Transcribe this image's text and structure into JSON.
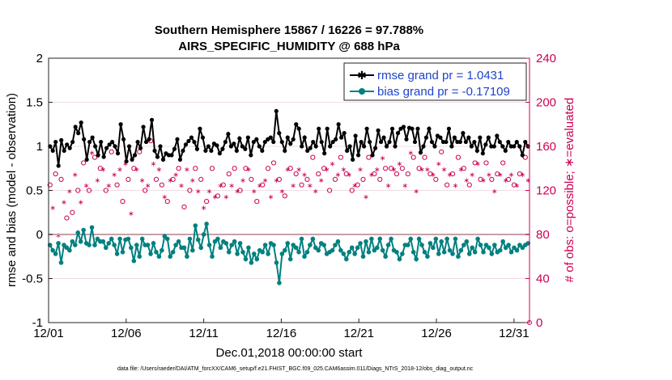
{
  "chart_data": {
    "type": "line",
    "title_line1": "Southern Hemisphere 15867 / 16226 = 97.788%",
    "title_line2": "AIRS_SPECIFIC_HUMIDITY @ 688 hPa",
    "xlabel": "Dec.01,2018 00:00:00 start",
    "ylabel": "rmse and bias (model - observation)",
    "ylabel_right": "# of obs: o=possible; ∗=evaluated",
    "x_tick_labels": [
      "12/01",
      "12/06",
      "12/11",
      "12/16",
      "12/21",
      "12/26",
      "12/31"
    ],
    "x_tick_days": [
      1,
      6,
      11,
      16,
      21,
      26,
      31
    ],
    "xlim": [
      1,
      32
    ],
    "ylim": [
      -1,
      2
    ],
    "y_ticks": [
      -1,
      -0.5,
      0,
      0.5,
      1,
      1.5,
      2
    ],
    "y_tick_labels": [
      "-1",
      "-0.5",
      "0",
      "0.5",
      "1",
      "1.5",
      "2"
    ],
    "ylim_right": [
      0,
      240
    ],
    "y_ticks_right": [
      0,
      40,
      80,
      120,
      160,
      200,
      240
    ],
    "y_tick_labels_right": [
      "0",
      "40",
      "80",
      "120",
      "160",
      "200",
      "240"
    ],
    "legend": {
      "position": "top-right",
      "rmse_label": "rmse grand pr = 1.0431",
      "bias_label": "bias grand pr = -0.17109"
    },
    "footer": "data file: /Users/raeder/DAI/ATM_forcXX/CAM6_setup/f.e21.FHIST_BGC.f09_025.CAM6assim.011/Diags_NTrS_2018-12/obs_diag_output.nc",
    "series": [
      {
        "name": "rmse",
        "color": "#000000",
        "values": [
          1.0,
          0.95,
          1.05,
          0.78,
          1.07,
          0.95,
          1.02,
          0.98,
          1.05,
          1.22,
          1.15,
          1.27,
          1.08,
          0.85,
          1.05,
          1.1,
          1.0,
          0.9,
          1.05,
          0.88,
          0.98,
          1.02,
          1.05,
          1.0,
          0.92,
          1.25,
          1.08,
          0.83,
          1.0,
          0.85,
          0.9,
          1.05,
          0.98,
          1.22,
          1.05,
          1.08,
          1.3,
          0.95,
          0.88,
          1.0,
          0.85,
          0.92,
          0.9,
          0.9,
          0.97,
          1.08,
          0.85,
          0.95,
          1.02,
          1.06,
          1.1,
          1.05,
          0.97,
          1.2,
          1.1,
          0.95,
          1.0,
          0.95,
          1.03,
          1.01,
          0.92,
          0.97,
          1.05,
          1.14,
          1.0,
          1.03,
          0.95,
          1.09,
          1.0,
          0.97,
          1.1,
          0.9,
          1.05,
          1.08,
          1.0,
          0.95,
          1.05,
          1.08,
          1.1,
          1.05,
          1.4,
          1.15,
          1.05,
          0.95,
          1.1,
          1.03,
          1.08,
          1.25,
          1.2,
          1.0,
          1.1,
          0.95,
          0.98,
          1.05,
          1.0,
          1.2,
          1.05,
          0.92,
          1.2,
          1.0,
          1.05,
          1.08,
          1.25,
          1.1,
          1.15,
          0.95,
          1.0,
          0.85,
          1.12,
          0.9,
          1.05,
          1.0,
          1.2,
          1.05,
          0.9,
          0.98,
          1.18,
          1.05,
          1.1,
          1.0,
          1.05,
          1.2,
          1.0,
          1.15,
          1.2,
          1.22,
          1.08,
          1.21,
          1.2,
          1.05,
          1.2,
          0.93,
          1.0,
          1.1,
          1.2,
          1.05,
          1.0,
          1.12,
          1.1,
          1.05,
          1.05,
          1.2,
          1.0,
          1.1,
          1.05,
          1.05,
          1.15,
          1.05,
          1.1,
          1.0,
          1.05,
          0.95,
          1.1,
          0.92,
          1.02,
          1.1,
          1.0,
          1.0,
          1.12,
          1.05,
          1.0,
          0.95,
          1.05,
          1.0,
          1.0,
          1.05,
          1.0,
          0.9,
          1.05,
          1.0
        ]
      },
      {
        "name": "bias",
        "color": "#00807f",
        "values": [
          -0.12,
          -0.18,
          -0.22,
          -0.1,
          -0.32,
          -0.12,
          -0.15,
          -0.18,
          -0.08,
          -0.12,
          0.02,
          -0.08,
          0.05,
          -0.1,
          -0.12,
          0.08,
          -0.12,
          -0.05,
          -0.08,
          -0.08,
          -0.15,
          -0.1,
          -0.05,
          -0.12,
          -0.22,
          -0.05,
          -0.2,
          -0.06,
          -0.05,
          -0.15,
          -0.3,
          -0.12,
          -0.25,
          -0.05,
          -0.12,
          -0.12,
          -0.22,
          -0.1,
          -0.2,
          -0.25,
          -0.18,
          -0.02,
          -0.05,
          -0.25,
          -0.2,
          -0.12,
          -0.08,
          -0.15,
          -0.15,
          -0.25,
          -0.05,
          -0.18,
          0.1,
          -0.06,
          -0.15,
          0.0,
          0.12,
          -0.12,
          -0.25,
          -0.08,
          -0.05,
          -0.15,
          -0.08,
          -0.1,
          -0.2,
          -0.12,
          -0.08,
          -0.22,
          -0.1,
          -0.2,
          -0.28,
          -0.15,
          -0.32,
          -0.22,
          -0.28,
          -0.18,
          -0.2,
          -0.12,
          -0.22,
          -0.1,
          -0.12,
          -0.32,
          -0.55,
          -0.22,
          -0.18,
          -0.1,
          -0.28,
          -0.12,
          -0.15,
          -0.2,
          -0.05,
          -0.25,
          -0.2,
          -0.12,
          -0.05,
          -0.15,
          -0.18,
          -0.1,
          -0.12,
          -0.22,
          -0.2,
          -0.18,
          -0.12,
          -0.08,
          -0.18,
          -0.22,
          -0.28,
          -0.2,
          -0.15,
          -0.22,
          -0.15,
          -0.1,
          -0.25,
          -0.08,
          -0.2,
          -0.05,
          -0.18,
          -0.15,
          -0.05,
          -0.18,
          -0.25,
          -0.12,
          -0.05,
          -0.18,
          -0.2,
          -0.28,
          -0.22,
          -0.12,
          -0.12,
          -0.05,
          -0.2,
          -0.28,
          -0.05,
          -0.12,
          -0.2,
          -0.25,
          -0.1,
          -0.15,
          -0.05,
          -0.22,
          -0.08,
          -0.2,
          -0.05,
          -0.18,
          -0.22,
          -0.05,
          -0.25,
          -0.18,
          -0.12,
          -0.08,
          -0.22,
          -0.15,
          -0.2,
          -0.05,
          -0.12,
          -0.2,
          -0.12,
          -0.15,
          -0.22,
          -0.12,
          -0.2,
          -0.18,
          -0.08,
          -0.15,
          -0.12,
          -0.2,
          -0.15,
          -0.18,
          -0.12,
          -0.15,
          -0.12,
          -0.1
        ]
      },
      {
        "name": "obs_possible",
        "color": "#cc0055",
        "marker": "o",
        "values": [
          125,
          110,
          135,
          85,
          130,
          115,
          95,
          125,
          100,
          140,
          120,
          115,
          145,
          130,
          120,
          160,
          150,
          135,
          140,
          145,
          120,
          130,
          155,
          140,
          125,
          145,
          110,
          150,
          130,
          105,
          140,
          145,
          155,
          135,
          120,
          130,
          165,
          150,
          130,
          145,
          125,
          120,
          110,
          135,
          130,
          140,
          140,
          130,
          105,
          145,
          120,
          135,
          140,
          125,
          130,
          110,
          110,
          125,
          140,
          120,
          115,
          130,
          125,
          120,
          135,
          130,
          140,
          125,
          120,
          135,
          140,
          145,
          130,
          125,
          110,
          130,
          125,
          135,
          140,
          120,
          145,
          135,
          130,
          125,
          115,
          145,
          140,
          130,
          135,
          145,
          125,
          140,
          130,
          130,
          150,
          125,
          135,
          135,
          140,
          145,
          120,
          150,
          130,
          140,
          150,
          145,
          135,
          140,
          120,
          130,
          125,
          145,
          130,
          120,
          150,
          140,
          135,
          145,
          130,
          155,
          140,
          130,
          140,
          145,
          135,
          150,
          140,
          130,
          135,
          160,
          150,
          125,
          140,
          145,
          150,
          145,
          135,
          140,
          130,
          150,
          155,
          145,
          125,
          140,
          135,
          130,
          150,
          145,
          140,
          135,
          125,
          140,
          145,
          150,
          130,
          135,
          145,
          140,
          130,
          125,
          135,
          140,
          145,
          135,
          130,
          140,
          125,
          130,
          135,
          140,
          150,
          135
        ]
      },
      {
        "name": "obs_evaluated",
        "color": "#cc0055",
        "marker": "*",
        "values": [
          120,
          105,
          130,
          80,
          125,
          110,
          90,
          120,
          95,
          135,
          115,
          110,
          140,
          125,
          115,
          155,
          145,
          130,
          135,
          140,
          115,
          125,
          150,
          135,
          120,
          140,
          105,
          145,
          125,
          100,
          135,
          140,
          150,
          130,
          115,
          125,
          160,
          145,
          125,
          140,
          120,
          115,
          105,
          130,
          125,
          135,
          135,
          125,
          100,
          140,
          115,
          130,
          135,
          120,
          125,
          105,
          105,
          120,
          135,
          115,
          110,
          125,
          120,
          115,
          130,
          125,
          135,
          120,
          115,
          130,
          135,
          140,
          125,
          120,
          105,
          125,
          120,
          130,
          135,
          115,
          140,
          130,
          125,
          120,
          110,
          140,
          135,
          125,
          130,
          140,
          120,
          135,
          125,
          125,
          145,
          120,
          130,
          130,
          135,
          140,
          115,
          145,
          125,
          135,
          145,
          140,
          130,
          135,
          115,
          125,
          120,
          140,
          125,
          115,
          145,
          135,
          130,
          140,
          125,
          150,
          135,
          125,
          135,
          140,
          130,
          145,
          135,
          125,
          130,
          155,
          145,
          120,
          135,
          140,
          145,
          140,
          130,
          135,
          125,
          145,
          150,
          140,
          120,
          135,
          130,
          125,
          145,
          140,
          135,
          130,
          120,
          135,
          140,
          145,
          125,
          130,
          140,
          135,
          125,
          120,
          130,
          135,
          140,
          130,
          125,
          135,
          120,
          125,
          130,
          135,
          145,
          130
        ]
      }
    ]
  }
}
